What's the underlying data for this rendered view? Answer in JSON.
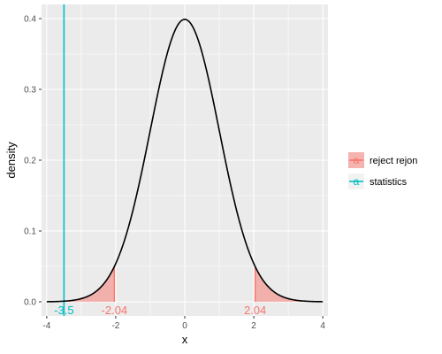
{
  "chart_data": {
    "type": "line",
    "title": "",
    "xlabel": "x",
    "ylabel": "density",
    "xlim": [
      -4.15,
      4.15
    ],
    "ylim": [
      -0.02,
      0.42
    ],
    "x_ticks": [
      -4,
      -2,
      0,
      2,
      4
    ],
    "x_tick_labels": [
      "-4",
      "-2",
      "0",
      "2",
      "4"
    ],
    "y_ticks": [
      0.0,
      0.1,
      0.2,
      0.3,
      0.4
    ],
    "y_tick_labels": [
      "0.0",
      "0.1",
      "0.2",
      "0.3",
      "0.4"
    ],
    "grid": true,
    "density": {
      "distribution": "standard normal",
      "x_range": [
        -4,
        4
      ],
      "line_color": "#000000"
    },
    "reject_regions": [
      {
        "from": -4,
        "to": -2.04
      },
      {
        "from": 2.04,
        "to": 4
      }
    ],
    "series": [
      {
        "name": "reject rejon",
        "color": "#F8766D",
        "x_values": [
          -2.04,
          2.04
        ]
      },
      {
        "name": "statistics",
        "color": "#00BFC4",
        "x_values": [
          -3.5
        ]
      }
    ],
    "annotations": [
      {
        "text": "-3.5",
        "x": -3.5,
        "color": "#00BFC4"
      },
      {
        "text": "-2.04",
        "x": -2.04,
        "color": "#F8766D"
      },
      {
        "text": "2.04",
        "x": 2.04,
        "color": "#F8766D"
      }
    ],
    "legend": {
      "placement": "right",
      "key_glyph": "a",
      "entries": [
        "reject rejon",
        "statistics"
      ]
    },
    "colors": {
      "panel_background": "#EBEBEB",
      "grid": "#FFFFFF",
      "reject_fill": "#F8766D",
      "statistic_line": "#00BFC4"
    }
  }
}
